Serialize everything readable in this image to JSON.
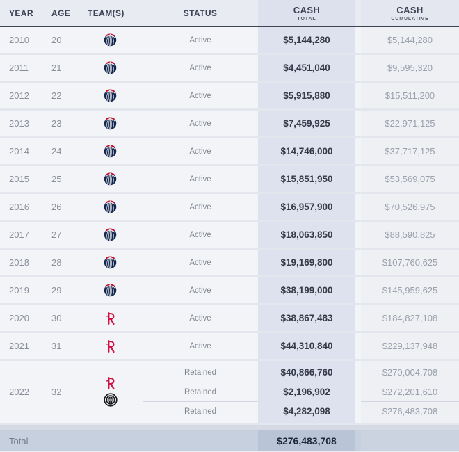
{
  "header": {
    "year": "YEAR",
    "age": "AGE",
    "teams": "TEAM(S)",
    "status": "STATUS",
    "cash_total": {
      "title": "CASH",
      "sub": "TOTAL"
    },
    "cash_cumulative": {
      "title": "CASH",
      "sub": "CUMULATIVE"
    }
  },
  "rows": [
    {
      "year": "2010",
      "age": "20",
      "teams": [
        "wizards"
      ],
      "entries": [
        {
          "status": "Active",
          "cash_total": "$5,144,280",
          "cash_cumulative": "$5,144,280"
        }
      ]
    },
    {
      "year": "2011",
      "age": "21",
      "teams": [
        "wizards"
      ],
      "entries": [
        {
          "status": "Active",
          "cash_total": "$4,451,040",
          "cash_cumulative": "$9,595,320"
        }
      ]
    },
    {
      "year": "2012",
      "age": "22",
      "teams": [
        "wizards"
      ],
      "entries": [
        {
          "status": "Active",
          "cash_total": "$5,915,880",
          "cash_cumulative": "$15,511,200"
        }
      ]
    },
    {
      "year": "2013",
      "age": "23",
      "teams": [
        "wizards"
      ],
      "entries": [
        {
          "status": "Active",
          "cash_total": "$7,459,925",
          "cash_cumulative": "$22,971,125"
        }
      ]
    },
    {
      "year": "2014",
      "age": "24",
      "teams": [
        "wizards"
      ],
      "entries": [
        {
          "status": "Active",
          "cash_total": "$14,746,000",
          "cash_cumulative": "$37,717,125"
        }
      ]
    },
    {
      "year": "2015",
      "age": "25",
      "teams": [
        "wizards"
      ],
      "entries": [
        {
          "status": "Active",
          "cash_total": "$15,851,950",
          "cash_cumulative": "$53,569,075"
        }
      ]
    },
    {
      "year": "2016",
      "age": "26",
      "teams": [
        "wizards"
      ],
      "entries": [
        {
          "status": "Active",
          "cash_total": "$16,957,900",
          "cash_cumulative": "$70,526,975"
        }
      ]
    },
    {
      "year": "2017",
      "age": "27",
      "teams": [
        "wizards"
      ],
      "entries": [
        {
          "status": "Active",
          "cash_total": "$18,063,850",
          "cash_cumulative": "$88,590,825"
        }
      ]
    },
    {
      "year": "2018",
      "age": "28",
      "teams": [
        "wizards"
      ],
      "entries": [
        {
          "status": "Active",
          "cash_total": "$19,169,800",
          "cash_cumulative": "$107,760,625"
        }
      ]
    },
    {
      "year": "2019",
      "age": "29",
      "teams": [
        "wizards"
      ],
      "entries": [
        {
          "status": "Active",
          "cash_total": "$38,199,000",
          "cash_cumulative": "$145,959,625"
        }
      ]
    },
    {
      "year": "2020",
      "age": "30",
      "teams": [
        "rockets"
      ],
      "entries": [
        {
          "status": "Active",
          "cash_total": "$38,867,483",
          "cash_cumulative": "$184,827,108"
        }
      ]
    },
    {
      "year": "2021",
      "age": "31",
      "teams": [
        "rockets"
      ],
      "entries": [
        {
          "status": "Active",
          "cash_total": "$44,310,840",
          "cash_cumulative": "$229,137,948"
        }
      ]
    },
    {
      "year": "2022",
      "age": "32",
      "teams": [
        "rockets",
        "clippers"
      ],
      "entries": [
        {
          "status": "Retained",
          "cash_total": "$40,866,760",
          "cash_cumulative": "$270,004,708"
        },
        {
          "status": "Retained",
          "cash_total": "$2,196,902",
          "cash_cumulative": "$272,201,610"
        },
        {
          "status": "Retained",
          "cash_total": "$4,282,098",
          "cash_cumulative": "$276,483,708"
        }
      ]
    }
  ],
  "footer": {
    "label": "Total",
    "cash_total": "$276,483,708"
  },
  "teams": {
    "wizards": {
      "name": "Washington Wizards",
      "primary": "#13264d",
      "accent": "#c8102e"
    },
    "rockets": {
      "name": "Houston Rockets",
      "primary": "#ce1141"
    },
    "clippers": {
      "name": "LA Clippers",
      "primary": "#17181c"
    }
  },
  "colors": {
    "page_bg": "#e9ebf2",
    "row_bg": "#f3f4f8",
    "cash_total_band": "#dde2ee",
    "cash_cumulative_band": "#eef0f4",
    "header_rule": "#3d4456",
    "total_row_bg": "#c7d0df",
    "total_row_band": "#b9c4d7",
    "text_dark": "#333a48",
    "text_gray": "#8a8f9a",
    "text_light": "#9aa0ac"
  }
}
